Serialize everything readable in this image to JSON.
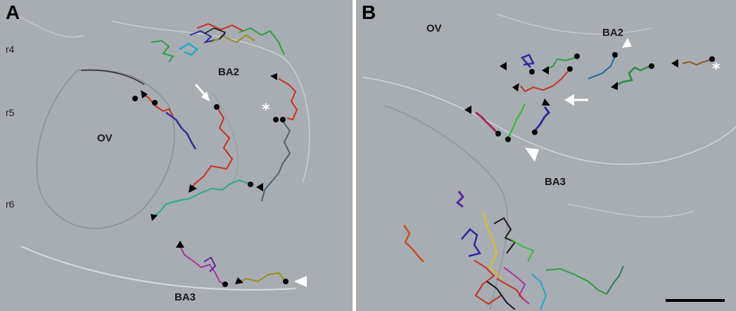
{
  "panels": {
    "a": {
      "label": "A",
      "rhombomeres": [
        "r4",
        "r5",
        "r6"
      ],
      "regions": {
        "ov": "OV",
        "ba2": "BA2",
        "ba3": "BA3"
      },
      "star": "*"
    },
    "b": {
      "label": "B",
      "regions": {
        "ov": "OV",
        "ba2": "BA2",
        "ba3": "BA3"
      },
      "star": "*"
    }
  },
  "colors": {
    "background": "#a7adb3",
    "track_red": "#c8321e",
    "track_blue": "#2c2c9c",
    "track_green": "#2e9e3c",
    "track_teal": "#2aa88c",
    "track_olive": "#9e8c1e",
    "track_magenta": "#b0309c",
    "track_brown": "#8a5a20",
    "track_slate": "#4c6470",
    "marker": "#000000",
    "arrow_outline": "#ffffff"
  },
  "icons": [
    "start-dot-icon",
    "direction-arrowhead-icon",
    "white-arrow-icon",
    "white-arrowhead-icon",
    "scale-bar"
  ]
}
